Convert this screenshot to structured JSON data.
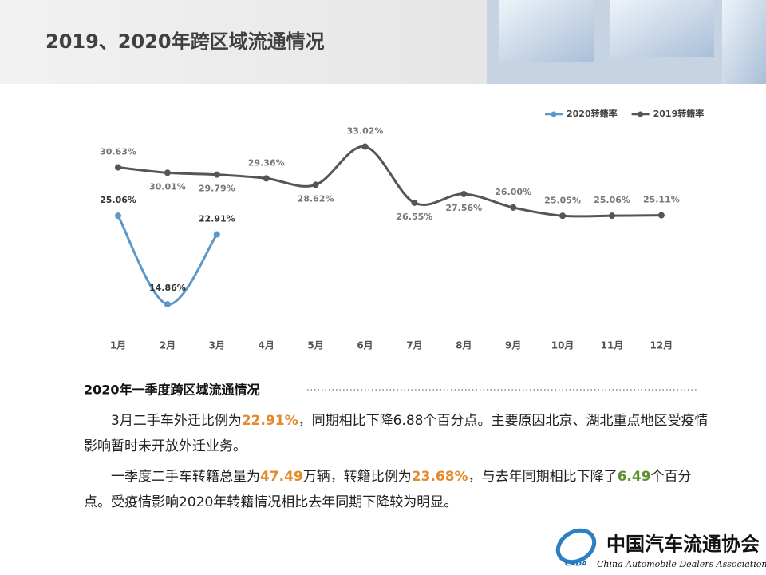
{
  "header": {
    "title": "2019、2020年跨区域流通情况"
  },
  "chart_data": {
    "type": "line",
    "categories": [
      "1月",
      "2月",
      "3月",
      "4月",
      "5月",
      "6月",
      "7月",
      "8月",
      "9月",
      "10月",
      "11月",
      "12月"
    ],
    "series": [
      {
        "name": "2020转籍率",
        "color": "#5b97c9",
        "values": [
          25.06,
          14.86,
          22.91,
          null,
          null,
          null,
          null,
          null,
          null,
          null,
          null,
          null
        ],
        "value_labels": [
          "25.06%",
          "14.86%",
          "22.91%",
          null,
          null,
          null,
          null,
          null,
          null,
          null,
          null,
          null
        ]
      },
      {
        "name": "2019转籍率",
        "color": "#555555",
        "values": [
          30.63,
          30.01,
          29.79,
          29.36,
          28.62,
          33.02,
          26.55,
          27.56,
          26.0,
          25.05,
          25.06,
          25.11
        ],
        "value_labels": [
          "30.63%",
          "30.01%",
          "29.79%",
          "29.36%",
          "28.62%",
          "33.02%",
          "26.55%",
          "27.56%",
          "26.00%",
          "25.05%",
          "25.06%",
          "25.11%"
        ]
      }
    ],
    "ylim": [
      10,
      35
    ],
    "legend": "top-right",
    "smooth": true
  },
  "section": {
    "heading": "2020年一季度跨区域流通情况",
    "paragraphs": [
      [
        {
          "text": "3月二手车外迁比例为"
        },
        {
          "text": "22.91%",
          "color": "#e38a2d"
        },
        {
          "text": "，同期相比下降6.88个百分点。主要原因北京、湖北重点地区受疫情影响暂时未开放外迁业务。"
        }
      ],
      [
        {
          "text": "一季度二手车转籍总量为"
        },
        {
          "text": "47.49",
          "color": "#e38a2d"
        },
        {
          "text": "万辆，转籍比例为"
        },
        {
          "text": "23.68%",
          "color": "#e38a2d"
        },
        {
          "text": "，与去年同期相比下降了"
        },
        {
          "text": "6.49",
          "color": "#5f8f2f"
        },
        {
          "text": "个百分点。受疫情影响2020年转籍情况相比去年同期下降较为明显。"
        }
      ]
    ]
  },
  "logo": {
    "name": "中国汽车流通协会",
    "english": "China Automobile Dealers Association",
    "mark": "CADA"
  }
}
